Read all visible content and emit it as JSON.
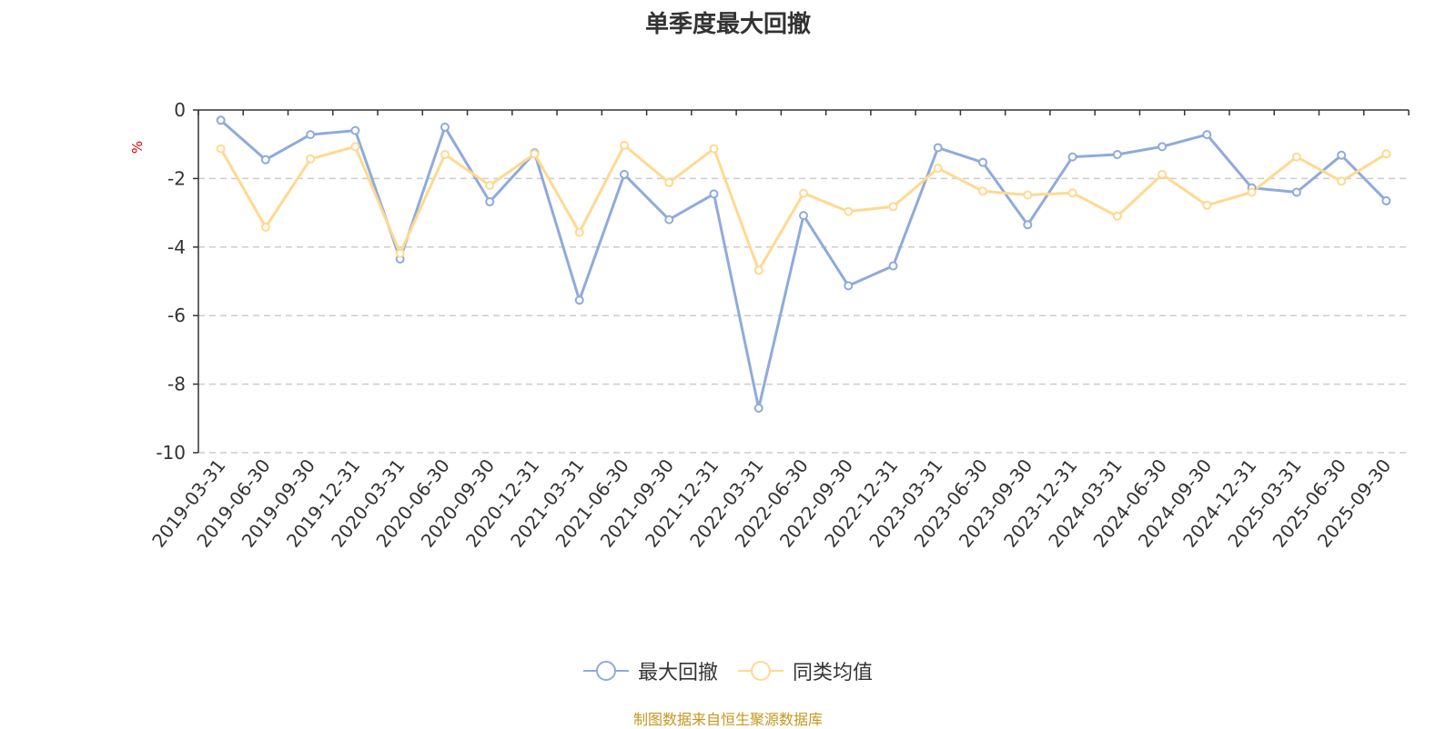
{
  "chart_data": {
    "type": "line",
    "title": "单季度最大回撤",
    "ylabel": "%",
    "ylim": [
      -10,
      0
    ],
    "yticks": [
      0,
      -2,
      -4,
      -6,
      -8,
      -10
    ],
    "grid": true,
    "legend_position": "bottom",
    "categories": [
      "2019-03-31",
      "2019-06-30",
      "2019-09-30",
      "2019-12-31",
      "2020-03-31",
      "2020-06-30",
      "2020-09-30",
      "2020-12-31",
      "2021-03-31",
      "2021-06-30",
      "2021-09-30",
      "2021-12-31",
      "2022-03-31",
      "2022-06-30",
      "2022-09-30",
      "2022-12-31",
      "2023-03-31",
      "2023-06-30",
      "2023-09-30",
      "2023-12-31",
      "2024-03-31",
      "2024-06-30",
      "2024-09-30",
      "2024-12-31",
      "2025-03-31",
      "2025-06-30",
      "2025-09-30"
    ],
    "series": [
      {
        "name": "最大回撤",
        "color": "#8faadc",
        "values": [
          -0.3,
          -1.45,
          -0.72,
          -0.6,
          -4.35,
          -0.5,
          -2.68,
          -1.25,
          -5.55,
          -1.88,
          -3.2,
          -2.45,
          -8.7,
          -3.08,
          -5.13,
          -4.55,
          -1.1,
          -1.53,
          -3.35,
          -1.37,
          -1.3,
          -1.07,
          -0.72,
          -2.27,
          -2.4,
          -1.32,
          -2.65
        ]
      },
      {
        "name": "同类均值",
        "color": "#ffd990",
        "values": [
          -1.13,
          -3.42,
          -1.43,
          -1.07,
          -4.18,
          -1.3,
          -2.2,
          -1.28,
          -3.57,
          -1.03,
          -2.12,
          -1.13,
          -4.68,
          -2.43,
          -2.96,
          -2.82,
          -1.7,
          -2.37,
          -2.48,
          -2.42,
          -3.1,
          -1.88,
          -2.78,
          -2.4,
          -1.37,
          -2.08,
          -1.28
        ]
      }
    ]
  },
  "source_text": "制图数据来自恒生聚源数据库"
}
